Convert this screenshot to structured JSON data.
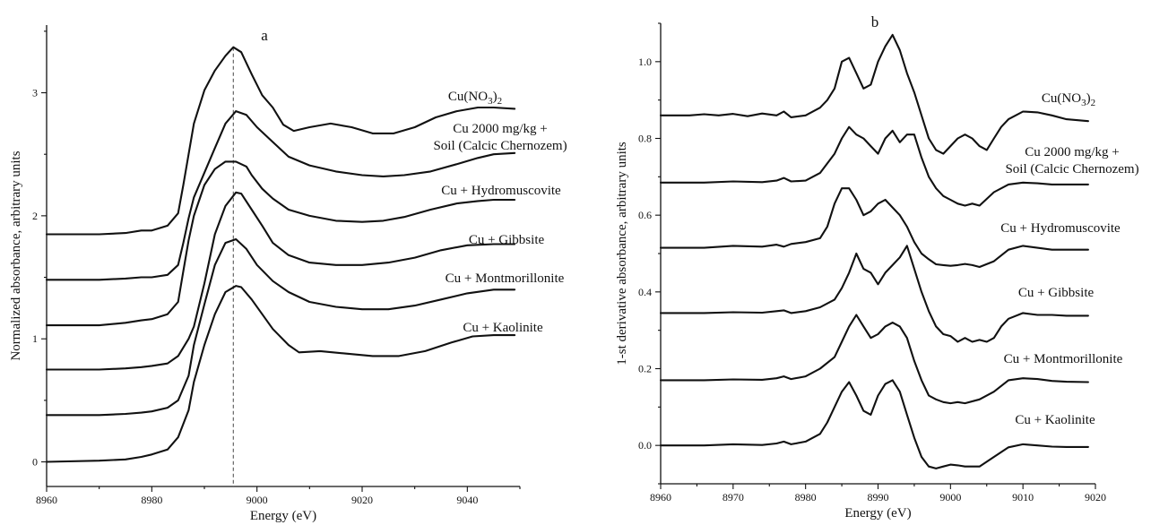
{
  "chart_data": [
    {
      "id": "a",
      "type": "line",
      "title": "a",
      "xlabel": "Energy (eV)",
      "ylabel": "Normalized absorbance, arbitrary units",
      "xlim": [
        8960,
        9050
      ],
      "ylim": [
        -0.2,
        3.55
      ],
      "x_ticks": [
        8960,
        8980,
        9000,
        9020,
        9040
      ],
      "y_ticks": [
        0,
        1,
        2,
        3
      ],
      "reference_line_x": 8995.5,
      "series": [
        {
          "name": "Cu(NO3)2",
          "label_parts": [
            "Cu(NO",
            "3",
            ")",
            "2"
          ],
          "x": [
            8960,
            8970,
            8975,
            8978,
            8980,
            8983,
            8985,
            8986,
            8987,
            8988,
            8990,
            8992,
            8994,
            8995.5,
            8997,
            8999,
            9001,
            9003,
            9005,
            9007,
            9010,
            9014,
            9018,
            9022,
            9026,
            9030,
            9034,
            9038,
            9042,
            9045,
            9049
          ],
          "y": [
            1.85,
            1.85,
            1.86,
            1.88,
            1.88,
            1.92,
            2.02,
            2.25,
            2.5,
            2.75,
            3.02,
            3.18,
            3.3,
            3.37,
            3.33,
            3.15,
            2.98,
            2.88,
            2.74,
            2.69,
            2.72,
            2.75,
            2.72,
            2.67,
            2.67,
            2.72,
            2.8,
            2.85,
            2.88,
            2.88,
            2.87
          ]
        },
        {
          "name": "Cu 2000 mg/kg + Soil (Calcic Chernozem)",
          "label_lines": [
            "Cu 2000 mg/kg +",
            "Soil (Calcic Chernozem)"
          ],
          "x": [
            8960,
            8970,
            8975,
            8978,
            8980,
            8983,
            8985,
            8986,
            8987,
            8988,
            8990,
            8992,
            8994,
            8996,
            8998,
            9000,
            9003,
            9006,
            9010,
            9015,
            9020,
            9024,
            9028,
            9033,
            9038,
            9042,
            9045,
            9049
          ],
          "y": [
            1.48,
            1.48,
            1.49,
            1.5,
            1.5,
            1.52,
            1.6,
            1.78,
            1.98,
            2.15,
            2.35,
            2.55,
            2.75,
            2.85,
            2.82,
            2.72,
            2.6,
            2.48,
            2.41,
            2.36,
            2.33,
            2.32,
            2.33,
            2.36,
            2.42,
            2.47,
            2.5,
            2.51
          ]
        },
        {
          "name": "Cu + Hydromuscovite",
          "x": [
            8960,
            8970,
            8975,
            8978,
            8980,
            8983,
            8985,
            8986,
            8987,
            8988,
            8990,
            8992,
            8994,
            8996,
            8998,
            8999,
            9001,
            9003,
            9006,
            9010,
            9015,
            9020,
            9024,
            9028,
            9033,
            9038,
            9042,
            9045,
            9049
          ],
          "y": [
            1.11,
            1.11,
            1.13,
            1.15,
            1.16,
            1.2,
            1.3,
            1.55,
            1.8,
            2.0,
            2.25,
            2.38,
            2.44,
            2.44,
            2.4,
            2.33,
            2.22,
            2.14,
            2.05,
            2.0,
            1.96,
            1.95,
            1.96,
            1.99,
            2.05,
            2.1,
            2.12,
            2.13,
            2.13
          ]
        },
        {
          "name": "Cu + Gibbsite",
          "x": [
            8960,
            8970,
            8975,
            8978,
            8980,
            8983,
            8985,
            8987,
            8988,
            8990,
            8992,
            8994,
            8996,
            8997,
            8999,
            9001,
            9003,
            9006,
            9010,
            9015,
            9020,
            9025,
            9030,
            9035,
            9040,
            9045,
            9049
          ],
          "y": [
            0.75,
            0.75,
            0.76,
            0.77,
            0.78,
            0.8,
            0.86,
            1.0,
            1.1,
            1.45,
            1.85,
            2.08,
            2.19,
            2.18,
            2.05,
            1.92,
            1.78,
            1.68,
            1.62,
            1.6,
            1.6,
            1.62,
            1.66,
            1.72,
            1.76,
            1.77,
            1.77
          ]
        },
        {
          "name": "Cu + Montmorillonite",
          "x": [
            8960,
            8970,
            8975,
            8978,
            8980,
            8983,
            8985,
            8987,
            8988,
            8990,
            8992,
            8994,
            8996,
            8998,
            9000,
            9003,
            9006,
            9010,
            9015,
            9020,
            9025,
            9030,
            9035,
            9040,
            9045,
            9049
          ],
          "y": [
            0.38,
            0.38,
            0.39,
            0.4,
            0.41,
            0.44,
            0.5,
            0.7,
            0.95,
            1.28,
            1.6,
            1.78,
            1.81,
            1.73,
            1.6,
            1.47,
            1.38,
            1.3,
            1.26,
            1.24,
            1.24,
            1.27,
            1.32,
            1.37,
            1.4,
            1.4
          ]
        },
        {
          "name": "Cu + Kaolinite",
          "x": [
            8960,
            8970,
            8975,
            8978,
            8980,
            8983,
            8985,
            8987,
            8988,
            8990,
            8992,
            8994,
            8996,
            8997,
            8999,
            9001,
            9003,
            9006,
            9008,
            9012,
            9017,
            9022,
            9027,
            9032,
            9037,
            9041,
            9045,
            9049
          ],
          "y": [
            0.0,
            0.01,
            0.02,
            0.04,
            0.06,
            0.1,
            0.2,
            0.42,
            0.65,
            0.95,
            1.2,
            1.38,
            1.43,
            1.42,
            1.32,
            1.2,
            1.08,
            0.95,
            0.89,
            0.9,
            0.88,
            0.86,
            0.86,
            0.9,
            0.97,
            1.02,
            1.03,
            1.03
          ]
        }
      ]
    },
    {
      "id": "b",
      "type": "line",
      "title": "b",
      "xlabel": "Energy (eV)",
      "ylabel": "1-st derivative absorbance, arbitrary units",
      "xlim": [
        8960,
        9020
      ],
      "ylim": [
        -0.1,
        1.1
      ],
      "x_ticks": [
        8960,
        8970,
        8980,
        8990,
        9000,
        9010,
        9020
      ],
      "y_ticks": [
        0.0,
        0.2,
        0.4,
        0.6,
        0.8,
        1.0
      ],
      "series": [
        {
          "name": "Cu(NO3)2",
          "label_parts": [
            "Cu(NO",
            "3",
            ")",
            "2"
          ],
          "x": [
            8960,
            8964,
            8966,
            8968,
            8970,
            8972,
            8974,
            8976,
            8977,
            8978,
            8980,
            8982,
            8983,
            8984,
            8985,
            8986,
            8987,
            8988,
            8989,
            8990,
            8991,
            8992,
            8993,
            8994,
            8995,
            8996,
            8997,
            8998,
            8999,
            9000,
            9001,
            9002,
            9003,
            9004,
            9005,
            9006,
            9007,
            9008,
            9010,
            9012,
            9014,
            9016,
            9019
          ],
          "y": [
            0.86,
            0.86,
            0.863,
            0.86,
            0.864,
            0.858,
            0.865,
            0.86,
            0.87,
            0.855,
            0.86,
            0.88,
            0.9,
            0.93,
            1.0,
            1.01,
            0.97,
            0.93,
            0.94,
            1.0,
            1.04,
            1.07,
            1.03,
            0.97,
            0.92,
            0.86,
            0.8,
            0.77,
            0.76,
            0.78,
            0.8,
            0.81,
            0.8,
            0.78,
            0.77,
            0.8,
            0.83,
            0.85,
            0.87,
            0.868,
            0.86,
            0.85,
            0.845
          ]
        },
        {
          "name": "Cu 2000 mg/kg + Soil (Calcic Chernozem)",
          "label_lines": [
            "Cu 2000 mg/kg +",
            "Soil (Calcic Chernozem)"
          ],
          "x": [
            8960,
            8966,
            8970,
            8974,
            8976,
            8977,
            8978,
            8980,
            8982,
            8984,
            8985,
            8986,
            8987,
            8988,
            8989,
            8990,
            8991,
            8992,
            8993,
            8994,
            8995,
            8996,
            8997,
            8998,
            8999,
            9000,
            9001,
            9002,
            9003,
            9004,
            9006,
            9008,
            9010,
            9012,
            9014,
            9016,
            9019
          ],
          "y": [
            0.685,
            0.685,
            0.688,
            0.686,
            0.69,
            0.697,
            0.688,
            0.69,
            0.71,
            0.76,
            0.8,
            0.83,
            0.81,
            0.8,
            0.78,
            0.76,
            0.8,
            0.82,
            0.79,
            0.81,
            0.81,
            0.75,
            0.7,
            0.67,
            0.65,
            0.64,
            0.63,
            0.625,
            0.63,
            0.625,
            0.66,
            0.68,
            0.685,
            0.683,
            0.68,
            0.68,
            0.68
          ]
        },
        {
          "name": "Cu + Hydromuscovite",
          "x": [
            8960,
            8966,
            8970,
            8974,
            8976,
            8977,
            8978,
            8980,
            8982,
            8983,
            8984,
            8985,
            8986,
            8987,
            8988,
            8989,
            8990,
            8991,
            8992,
            8993,
            8994,
            8995,
            8996,
            8997,
            8998,
            8999,
            9000,
            9001,
            9002,
            9003,
            9004,
            9006,
            9008,
            9010,
            9012,
            9014,
            9016,
            9019
          ],
          "y": [
            0.515,
            0.515,
            0.52,
            0.518,
            0.523,
            0.518,
            0.525,
            0.53,
            0.54,
            0.57,
            0.63,
            0.67,
            0.67,
            0.64,
            0.6,
            0.61,
            0.63,
            0.64,
            0.62,
            0.6,
            0.57,
            0.53,
            0.5,
            0.485,
            0.472,
            0.47,
            0.468,
            0.47,
            0.473,
            0.47,
            0.465,
            0.48,
            0.51,
            0.52,
            0.515,
            0.51,
            0.51,
            0.51
          ]
        },
        {
          "name": "Cu + Gibbsite",
          "x": [
            8960,
            8966,
            8970,
            8974,
            8976,
            8977,
            8978,
            8980,
            8982,
            8984,
            8985,
            8986,
            8987,
            8988,
            8989,
            8990,
            8991,
            8992,
            8993,
            8994,
            8995,
            8996,
            8997,
            8998,
            8999,
            9000,
            9001,
            9002,
            9003,
            9004,
            9005,
            9006,
            9007,
            9008,
            9010,
            9012,
            9014,
            9016,
            9019
          ],
          "y": [
            0.345,
            0.345,
            0.347,
            0.346,
            0.35,
            0.352,
            0.345,
            0.35,
            0.36,
            0.38,
            0.41,
            0.45,
            0.5,
            0.46,
            0.45,
            0.42,
            0.45,
            0.47,
            0.49,
            0.52,
            0.46,
            0.4,
            0.35,
            0.31,
            0.29,
            0.285,
            0.27,
            0.28,
            0.27,
            0.275,
            0.27,
            0.28,
            0.31,
            0.33,
            0.345,
            0.34,
            0.34,
            0.338,
            0.338
          ]
        },
        {
          "name": "Cu + Montmorillonite",
          "x": [
            8960,
            8966,
            8970,
            8974,
            8976,
            8977,
            8978,
            8980,
            8982,
            8984,
            8985,
            8986,
            8987,
            8988,
            8989,
            8990,
            8991,
            8992,
            8993,
            8994,
            8995,
            8996,
            8997,
            8998,
            8999,
            9000,
            9001,
            9002,
            9004,
            9006,
            9008,
            9010,
            9012,
            9014,
            9016,
            9019
          ],
          "y": [
            0.17,
            0.17,
            0.172,
            0.171,
            0.175,
            0.18,
            0.173,
            0.18,
            0.2,
            0.23,
            0.27,
            0.31,
            0.34,
            0.31,
            0.28,
            0.29,
            0.31,
            0.32,
            0.31,
            0.28,
            0.22,
            0.17,
            0.13,
            0.12,
            0.113,
            0.11,
            0.113,
            0.11,
            0.12,
            0.14,
            0.17,
            0.175,
            0.173,
            0.168,
            0.166,
            0.165
          ]
        },
        {
          "name": "Cu + Kaolinite",
          "x": [
            8960,
            8966,
            8970,
            8974,
            8976,
            8977,
            8978,
            8980,
            8982,
            8983,
            8984,
            8985,
            8986,
            8987,
            8988,
            8989,
            8990,
            8991,
            8992,
            8993,
            8994,
            8995,
            8996,
            8997,
            8998,
            8999,
            9000,
            9001,
            9002,
            9004,
            9006,
            9008,
            9010,
            9012,
            9014,
            9016,
            9019
          ],
          "y": [
            0.0,
            0.0,
            0.003,
            0.001,
            0.005,
            0.01,
            0.003,
            0.01,
            0.03,
            0.06,
            0.1,
            0.14,
            0.165,
            0.13,
            0.09,
            0.08,
            0.13,
            0.16,
            0.17,
            0.14,
            0.08,
            0.02,
            -0.03,
            -0.055,
            -0.06,
            -0.055,
            -0.05,
            -0.052,
            -0.055,
            -0.055,
            -0.03,
            -0.005,
            0.003,
            0.0,
            -0.003,
            -0.004,
            -0.004
          ]
        }
      ]
    }
  ]
}
